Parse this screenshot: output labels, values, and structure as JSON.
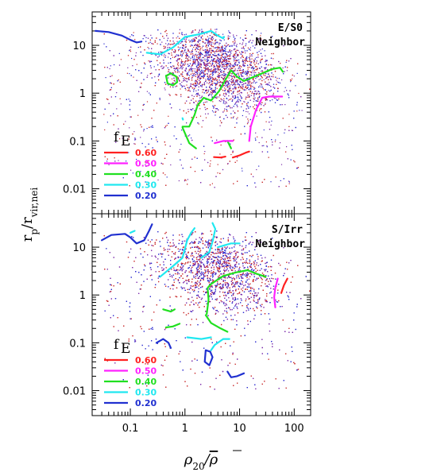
{
  "chart_data": [
    {
      "type": "scatter",
      "panel": "top",
      "label_line1": "E/S0",
      "label_line2": "Neighbor",
      "xscale": "log",
      "yscale": "log",
      "xlim": [
        0.02,
        200
      ],
      "ylim": [
        0.003,
        50
      ],
      "x_ticks": [
        "0.1",
        "1",
        "10",
        "100"
      ],
      "y_ticks": [
        "0.01",
        "0.1",
        "1",
        "10"
      ],
      "legend_title": "f",
      "legend_title_sub": "E",
      "legend": [
        {
          "label": "0.60",
          "color": "#ff2020"
        },
        {
          "label": "0.50",
          "color": "#ff20ff"
        },
        {
          "label": "0.40",
          "color": "#20e020"
        },
        {
          "label": "0.30",
          "color": "#20e8f0"
        },
        {
          "label": "0.20",
          "color": "#2030d0"
        }
      ],
      "scatter_colors": [
        "#2a2acf",
        "#c8282a",
        "#7a2aaa"
      ],
      "contours": [
        {
          "level": "0.20",
          "points": [
            [
              0.023,
              20
            ],
            [
              0.04,
              19
            ],
            [
              0.07,
              16
            ],
            [
              0.1,
              13
            ],
            [
              0.13,
              11.5
            ],
            [
              0.16,
              12
            ]
          ]
        },
        {
          "level": "0.30",
          "points": [
            [
              0.2,
              7
            ],
            [
              0.35,
              6.5
            ],
            [
              0.6,
              9
            ],
            [
              1,
              15
            ],
            [
              1.8,
              17
            ],
            [
              3,
              20
            ],
            [
              4,
              16
            ],
            [
              5,
              14
            ],
            [
              5.2,
              15
            ]
          ]
        },
        {
          "level": "0.30",
          "points": [
            [
              0.9,
              0.3
            ],
            [
              0.92,
              0.28
            ]
          ]
        },
        {
          "level": "0.40",
          "points": [
            [
              0.45,
              2.3
            ],
            [
              0.55,
              2.6
            ],
            [
              0.7,
              2.2
            ],
            [
              0.72,
              1.7
            ],
            [
              0.6,
              1.45
            ],
            [
              0.48,
              1.6
            ],
            [
              0.45,
              2.3
            ]
          ]
        },
        {
          "level": "0.40",
          "points": [
            [
              0.9,
              0.2
            ],
            [
              1.2,
              0.2
            ],
            [
              1.5,
              0.35
            ],
            [
              1.7,
              0.55
            ],
            [
              2.2,
              0.8
            ],
            [
              3,
              0.7
            ],
            [
              4.2,
              1.1
            ],
            [
              5.5,
              1.9
            ],
            [
              7,
              3.0
            ],
            [
              9,
              2.2
            ],
            [
              12,
              1.8
            ],
            [
              20,
              2.3
            ],
            [
              40,
              3.2
            ],
            [
              55,
              3.4
            ],
            [
              62,
              2.8
            ]
          ]
        },
        {
          "level": "0.40",
          "points": [
            [
              0.9,
              0.19
            ],
            [
              1.2,
              0.09
            ],
            [
              1.6,
              0.07
            ]
          ]
        },
        {
          "level": "0.40",
          "points": [
            [
              6,
              0.1
            ],
            [
              7,
              0.07
            ]
          ]
        },
        {
          "level": "0.50",
          "points": [
            [
              3.5,
              0.09
            ],
            [
              5,
              0.1
            ],
            [
              7.5,
              0.1
            ]
          ]
        },
        {
          "level": "0.50",
          "points": [
            [
              15,
              0.1
            ],
            [
              16,
              0.2
            ],
            [
              20,
              0.45
            ],
            [
              26,
              0.8
            ],
            [
              35,
              0.85
            ],
            [
              60,
              0.85
            ]
          ]
        },
        {
          "level": "0.60",
          "points": [
            [
              3.4,
              0.046
            ],
            [
              4.5,
              0.045
            ],
            [
              5.5,
              0.047
            ]
          ]
        },
        {
          "level": "0.60",
          "points": [
            [
              7.5,
              0.045
            ],
            [
              10,
              0.05
            ],
            [
              13,
              0.057
            ],
            [
              15,
              0.06
            ]
          ]
        }
      ]
    },
    {
      "type": "scatter",
      "panel": "bottom",
      "label_line1": "S/Irr",
      "label_line2": "Neighbor",
      "xscale": "log",
      "yscale": "log",
      "xlim": [
        0.02,
        200
      ],
      "ylim": [
        0.003,
        50
      ],
      "x_ticks": [
        "0.1",
        "1",
        "10",
        "100"
      ],
      "y_ticks": [
        "0.01",
        "0.1",
        "1",
        "10"
      ],
      "xlabel": "ρ20/ρ̄",
      "legend_title": "f",
      "legend_title_sub": "E",
      "legend": [
        {
          "label": "0.60",
          "color": "#ff2020"
        },
        {
          "label": "0.50",
          "color": "#ff20ff"
        },
        {
          "label": "0.40",
          "color": "#20e020"
        },
        {
          "label": "0.30",
          "color": "#20e8f0"
        },
        {
          "label": "0.20",
          "color": "#2030d0"
        }
      ],
      "scatter_colors": [
        "#2a2acf",
        "#c8282a",
        "#7a2aaa"
      ],
      "contours": [
        {
          "level": "0.20",
          "points": [
            [
              0.03,
              14
            ],
            [
              0.045,
              18
            ],
            [
              0.08,
              19
            ],
            [
              0.1,
              16
            ],
            [
              0.13,
              12
            ],
            [
              0.18,
              14
            ],
            [
              0.22,
              22
            ],
            [
              0.25,
              30
            ]
          ]
        },
        {
          "level": "0.30",
          "points": [
            [
              0.35,
              2.4
            ],
            [
              0.6,
              4
            ],
            [
              0.9,
              6
            ],
            [
              1.1,
              14
            ],
            [
              1.3,
              20
            ],
            [
              1.5,
              25
            ]
          ]
        },
        {
          "level": "0.30",
          "points": [
            [
              2,
              6
            ],
            [
              2.8,
              8
            ],
            [
              3.2,
              13
            ],
            [
              3.6,
              24
            ],
            [
              3.2,
              32
            ]
          ]
        },
        {
          "level": "0.30",
          "points": [
            [
              4,
              10
            ],
            [
              7,
              12
            ],
            [
              10,
              12
            ]
          ]
        },
        {
          "level": "0.30",
          "points": [
            [
              0.1,
              20
            ],
            [
              0.12,
              22
            ]
          ]
        },
        {
          "level": "0.40",
          "points": [
            [
              2.5,
              0.4
            ],
            [
              2.7,
              0.8
            ],
            [
              2.6,
              1.4
            ],
            [
              3,
              1.7
            ],
            [
              5,
              2.5
            ],
            [
              9,
              3
            ],
            [
              14,
              3.3
            ],
            [
              20,
              2.8
            ],
            [
              30,
              2.4
            ]
          ]
        },
        {
          "level": "0.40",
          "points": [
            [
              2.4,
              0.38
            ],
            [
              3,
              0.26
            ],
            [
              4.5,
              0.2
            ],
            [
              6,
              0.17
            ]
          ]
        },
        {
          "level": "0.40",
          "points": [
            [
              0.4,
              0.5
            ],
            [
              0.55,
              0.45
            ],
            [
              0.65,
              0.5
            ]
          ]
        },
        {
          "level": "0.40",
          "points": [
            [
              0.45,
              0.21
            ],
            [
              0.6,
              0.22
            ],
            [
              0.8,
              0.25
            ]
          ]
        },
        {
          "level": "0.30",
          "points": [
            [
              1.1,
              0.13
            ],
            [
              2,
              0.12
            ],
            [
              3,
              0.13
            ]
          ]
        },
        {
          "level": "0.30",
          "points": [
            [
              3,
              0.07
            ],
            [
              3.5,
              0.09
            ],
            [
              5,
              0.12
            ],
            [
              6.5,
              0.12
            ]
          ]
        },
        {
          "level": "0.20",
          "points": [
            [
              0.3,
              0.1
            ],
            [
              0.4,
              0.12
            ],
            [
              0.5,
              0.1
            ],
            [
              0.55,
              0.078
            ]
          ]
        },
        {
          "level": "0.20",
          "points": [
            [
              2.4,
              0.07
            ],
            [
              2.3,
              0.04
            ],
            [
              2.8,
              0.034
            ],
            [
              3.2,
              0.05
            ],
            [
              2.9,
              0.065
            ],
            [
              2.4,
              0.07
            ]
          ]
        },
        {
          "level": "0.20",
          "points": [
            [
              6,
              0.025
            ],
            [
              7,
              0.019
            ],
            [
              9,
              0.02
            ],
            [
              12,
              0.023
            ]
          ]
        },
        {
          "level": "0.50",
          "points": [
            [
              50,
              2.2
            ],
            [
              45,
              1.4
            ],
            [
              43,
              0.9
            ],
            [
              45,
              0.55
            ]
          ]
        },
        {
          "level": "0.60",
          "points": [
            [
              75,
              2.2
            ],
            [
              65,
              1.6
            ],
            [
              58,
              1.1
            ]
          ]
        }
      ]
    }
  ],
  "y_axis_title": "r_p / r_vir,nei",
  "y_axis_title_main": "r",
  "y_axis_title_sub1": "p",
  "y_axis_title_sep": "/r",
  "y_axis_title_sub2": "vir,nei",
  "x_axis_title_main": "ρ",
  "x_axis_title_sub": "20",
  "x_axis_title_sep": "/",
  "x_axis_title_bar": "ρ"
}
